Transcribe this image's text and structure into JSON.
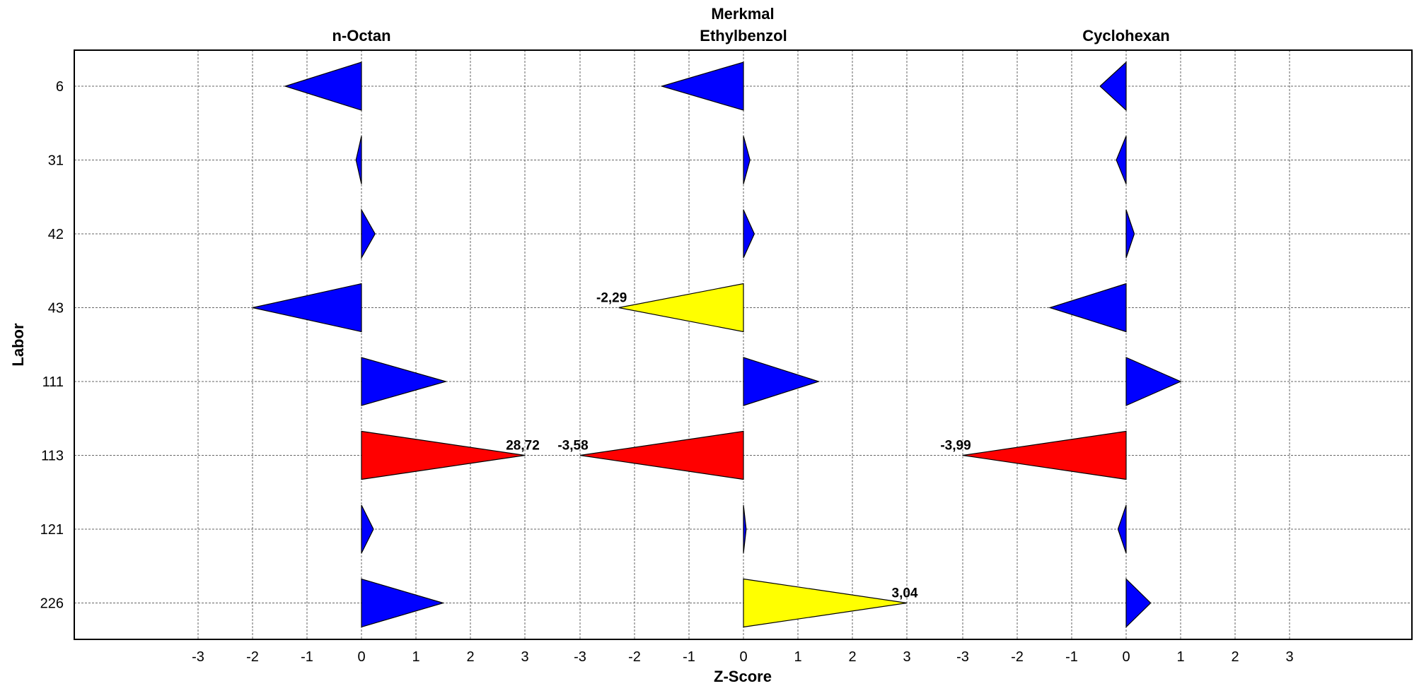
{
  "chart_data": {
    "type": "zscore-triangle",
    "super_title": "Merkmal",
    "xlabel": "Z-Score",
    "ylabel": "Labor",
    "x_ticks": [
      -3,
      -2,
      -1,
      0,
      1,
      2,
      3
    ],
    "categories": [
      "6",
      "31",
      "42",
      "43",
      "111",
      "113",
      "121",
      "226"
    ],
    "colors": {
      "ok": "#0000ff",
      "warn": "#ffff00",
      "fail": "#ff0000"
    },
    "panels": [
      {
        "title": "n-Octan",
        "values": [
          -1.4,
          -0.1,
          0.25,
          -2.0,
          1.55,
          28.72,
          0.22,
          1.5
        ],
        "status": [
          "ok",
          "ok",
          "ok",
          "ok",
          "ok",
          "fail",
          "ok",
          "ok"
        ],
        "labels": [
          "",
          "",
          "",
          "",
          "",
          "28,72",
          "",
          ""
        ]
      },
      {
        "title": "Ethylbenzol",
        "values": [
          -1.5,
          0.12,
          0.2,
          -2.29,
          1.38,
          -3.58,
          0.05,
          3.04
        ],
        "status": [
          "ok",
          "ok",
          "ok",
          "warn",
          "ok",
          "fail",
          "ok",
          "warn"
        ],
        "labels": [
          "",
          "",
          "",
          "-2,29",
          "",
          "-3,58",
          "",
          "3,04"
        ]
      },
      {
        "title": "Cyclohexan",
        "values": [
          -0.48,
          -0.18,
          0.15,
          -1.4,
          1.0,
          -3.99,
          -0.15,
          0.45
        ],
        "status": [
          "ok",
          "ok",
          "ok",
          "ok",
          "ok",
          "fail",
          "ok",
          "ok"
        ],
        "labels": [
          "",
          "",
          "",
          "",
          "",
          "-3,99",
          "",
          ""
        ]
      }
    ]
  }
}
